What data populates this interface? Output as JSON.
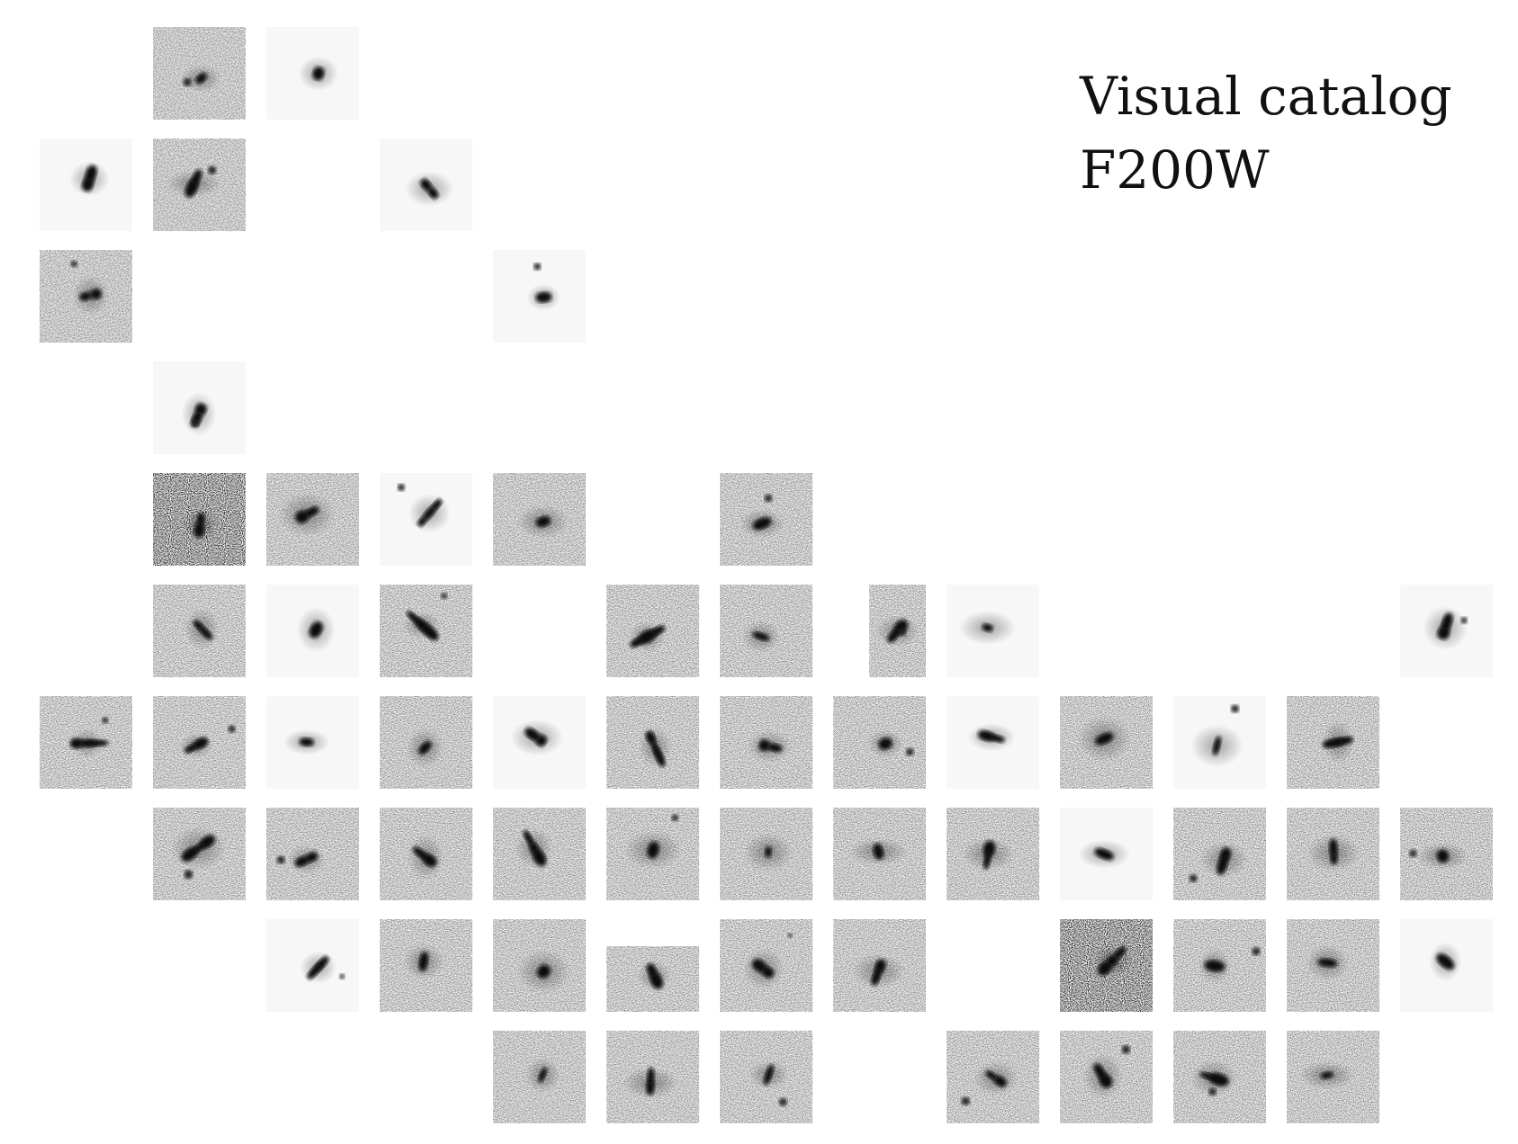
{
  "title": {
    "line1": "Visual catalog",
    "line2": "F200W"
  },
  "grid": {
    "rows": 10,
    "cols": 13,
    "cells": [
      [
        0,
        1,
        "noisy"
      ],
      [
        0,
        2,
        "smooth"
      ],
      [
        1,
        0,
        "smooth"
      ],
      [
        1,
        1,
        "noisy"
      ],
      [
        1,
        3,
        "smooth"
      ],
      [
        2,
        0,
        "noisy"
      ],
      [
        2,
        4,
        "smooth"
      ],
      [
        3,
        1,
        "smooth"
      ],
      [
        4,
        1,
        "very-noisy"
      ],
      [
        4,
        2,
        "noisy"
      ],
      [
        4,
        3,
        "smooth"
      ],
      [
        4,
        4,
        "noisy"
      ],
      [
        4,
        6,
        "noisy"
      ],
      [
        5,
        1,
        "noisy"
      ],
      [
        5,
        2,
        "smooth"
      ],
      [
        5,
        3,
        "noisy"
      ],
      [
        5,
        5,
        "noisy"
      ],
      [
        5,
        6,
        "noisy"
      ],
      [
        5,
        7,
        "noisy-narrow"
      ],
      [
        5,
        8,
        "smooth"
      ],
      [
        5,
        12,
        "smooth"
      ],
      [
        6,
        0,
        "noisy"
      ],
      [
        6,
        1,
        "noisy"
      ],
      [
        6,
        2,
        "smooth"
      ],
      [
        6,
        3,
        "noisy"
      ],
      [
        6,
        4,
        "smooth"
      ],
      [
        6,
        5,
        "noisy"
      ],
      [
        6,
        6,
        "noisy"
      ],
      [
        6,
        7,
        "noisy"
      ],
      [
        6,
        8,
        "smooth"
      ],
      [
        6,
        9,
        "noisy"
      ],
      [
        6,
        10,
        "smooth"
      ],
      [
        6,
        11,
        "noisy"
      ],
      [
        7,
        1,
        "noisy"
      ],
      [
        7,
        2,
        "noisy"
      ],
      [
        7,
        3,
        "noisy"
      ],
      [
        7,
        4,
        "noisy"
      ],
      [
        7,
        5,
        "noisy"
      ],
      [
        7,
        6,
        "noisy"
      ],
      [
        7,
        7,
        "noisy"
      ],
      [
        7,
        8,
        "noisy"
      ],
      [
        7,
        9,
        "smooth"
      ],
      [
        7,
        10,
        "noisy"
      ],
      [
        7,
        11,
        "noisy"
      ],
      [
        7,
        12,
        "noisy"
      ],
      [
        8,
        2,
        "smooth"
      ],
      [
        8,
        3,
        "noisy"
      ],
      [
        8,
        4,
        "noisy"
      ],
      [
        8,
        5,
        "noisy-short"
      ],
      [
        8,
        6,
        "noisy"
      ],
      [
        8,
        7,
        "noisy"
      ],
      [
        8,
        9,
        "very-noisy"
      ],
      [
        8,
        10,
        "noisy"
      ],
      [
        8,
        11,
        "noisy"
      ],
      [
        8,
        12,
        "smooth"
      ],
      [
        9,
        4,
        "noisy"
      ],
      [
        9,
        5,
        "noisy"
      ],
      [
        9,
        6,
        "noisy"
      ],
      [
        9,
        8,
        "noisy"
      ],
      [
        9,
        9,
        "noisy"
      ],
      [
        9,
        10,
        "noisy"
      ],
      [
        9,
        11,
        "noisy"
      ]
    ]
  }
}
